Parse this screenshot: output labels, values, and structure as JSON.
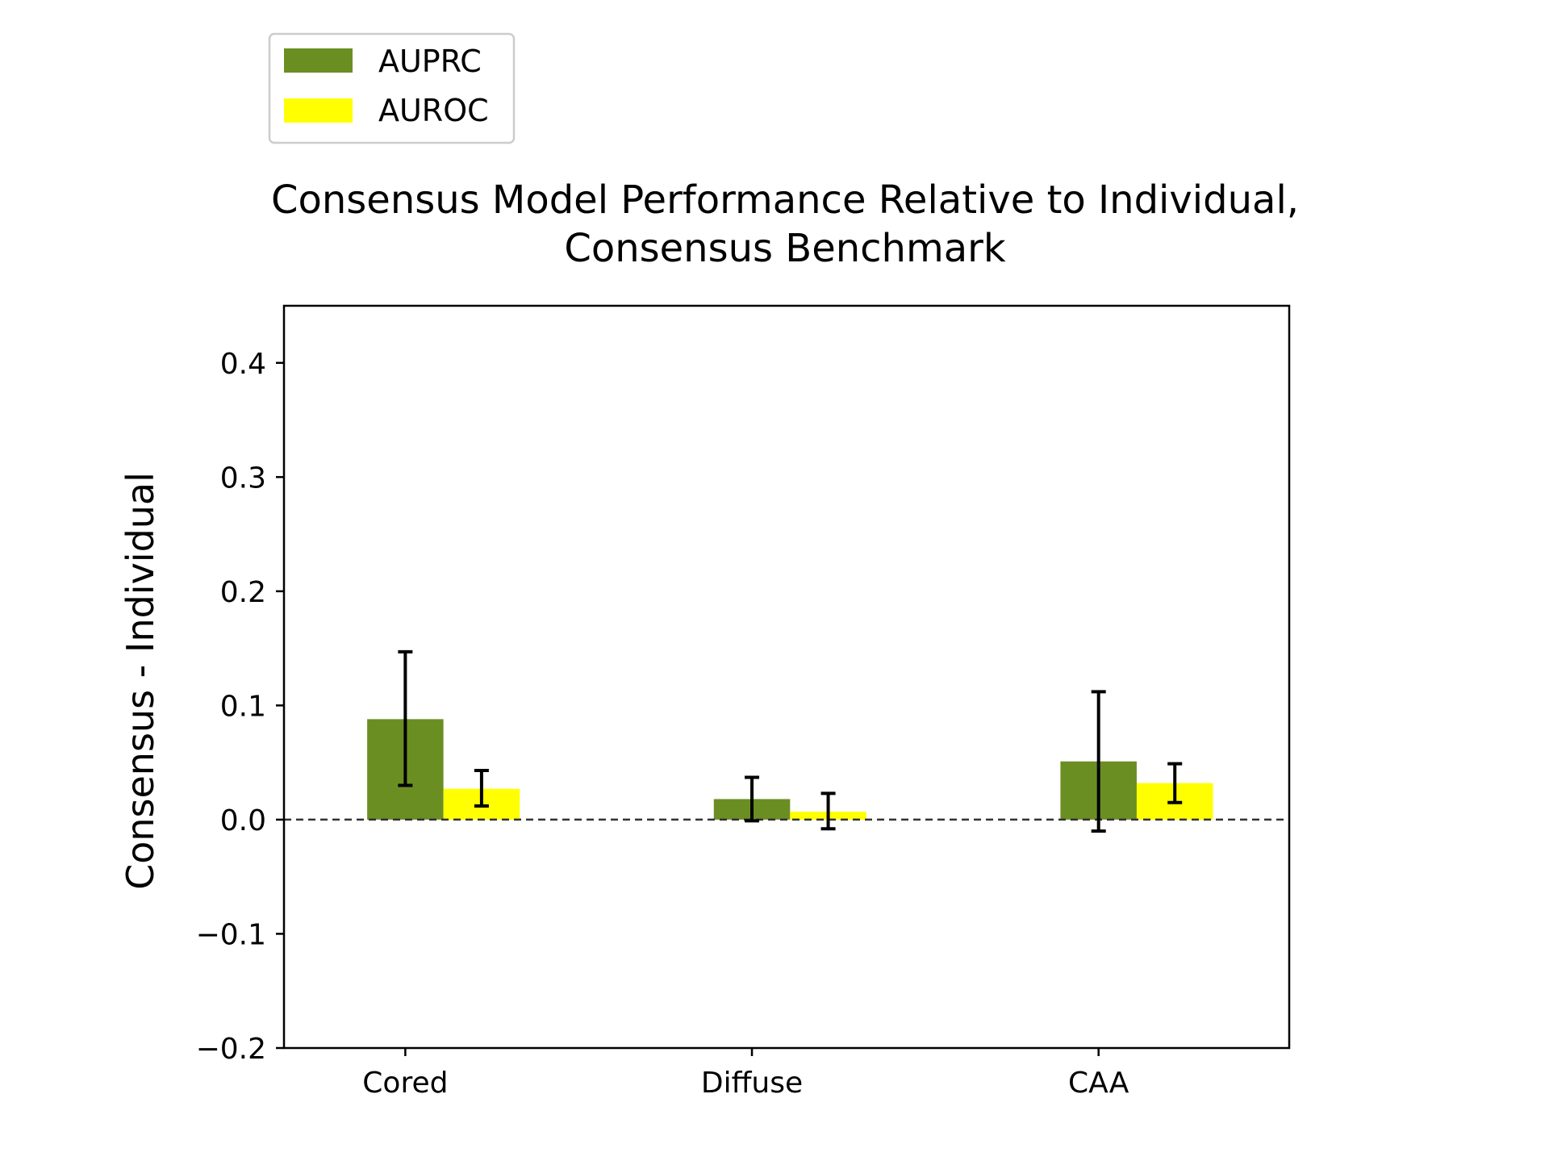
{
  "chart_data": {
    "type": "bar",
    "title": "Consensus Model Performance Relative to Individual,",
    "subtitle": "Consensus Benchmark",
    "xlabel": "",
    "ylabel": "Consensus - Individual",
    "categories": [
      "Cored",
      "Diffuse",
      "CAA"
    ],
    "series": [
      {
        "name": "AUPRC",
        "color": "#6b8e23",
        "values": [
          0.088,
          0.018,
          0.051
        ],
        "error_low": [
          0.03,
          -0.001,
          -0.01
        ],
        "error_high": [
          0.147,
          0.037,
          0.112
        ]
      },
      {
        "name": "AUROC",
        "color": "#ffff00",
        "values": [
          0.027,
          0.007,
          0.032
        ],
        "error_low": [
          0.012,
          -0.008,
          0.015
        ],
        "error_high": [
          0.043,
          0.023,
          0.049
        ]
      }
    ],
    "ylim": [
      -0.2,
      0.45
    ],
    "yticks": [
      -0.2,
      -0.1,
      0.0,
      0.1,
      0.2,
      0.3,
      0.4
    ],
    "ytick_labels": [
      "−0.2",
      "−0.1",
      "0.0",
      "0.1",
      "0.2",
      "0.3",
      "0.4"
    ],
    "reference_line": 0.0,
    "grid": false,
    "legend_position": "upper-left, outside above plot"
  }
}
